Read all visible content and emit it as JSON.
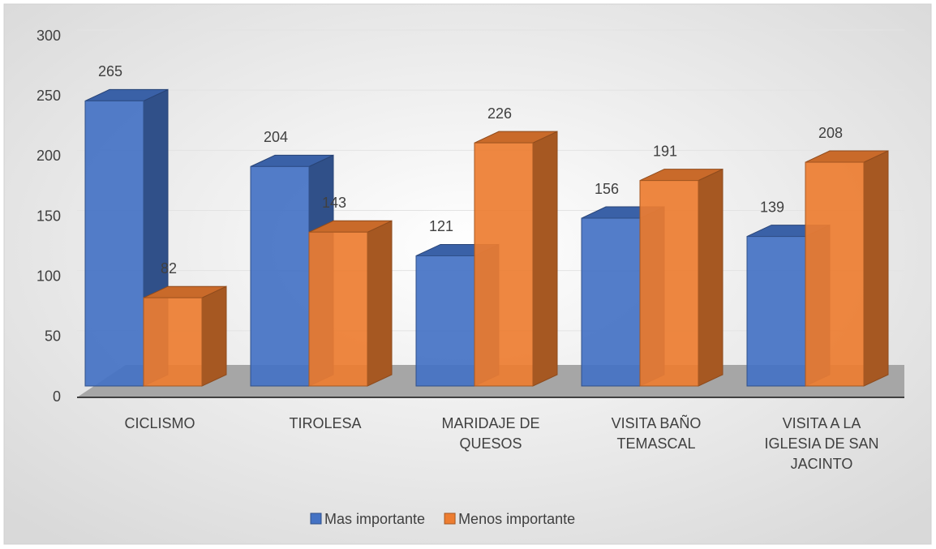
{
  "chart_data": {
    "type": "bar3d",
    "categories": [
      "CICLISMO",
      "TIROLESA",
      "MARIDAJE DE QUESOS",
      "VISITA BAÑO TEMASCAL",
      "VISITA A LA IGLESIA DE SAN JACINTO"
    ],
    "series": [
      {
        "name": "Mas importante",
        "color": "#4472c4",
        "values": [
          265,
          204,
          121,
          156,
          139
        ]
      },
      {
        "name": "Menos importante",
        "color": "#ed7d31",
        "values": [
          82,
          143,
          226,
          191,
          208
        ]
      }
    ],
    "ylim": [
      0,
      300
    ],
    "yticks": [
      0,
      50,
      100,
      150,
      200,
      250,
      300
    ],
    "grid": true,
    "legend": "bottom"
  }
}
